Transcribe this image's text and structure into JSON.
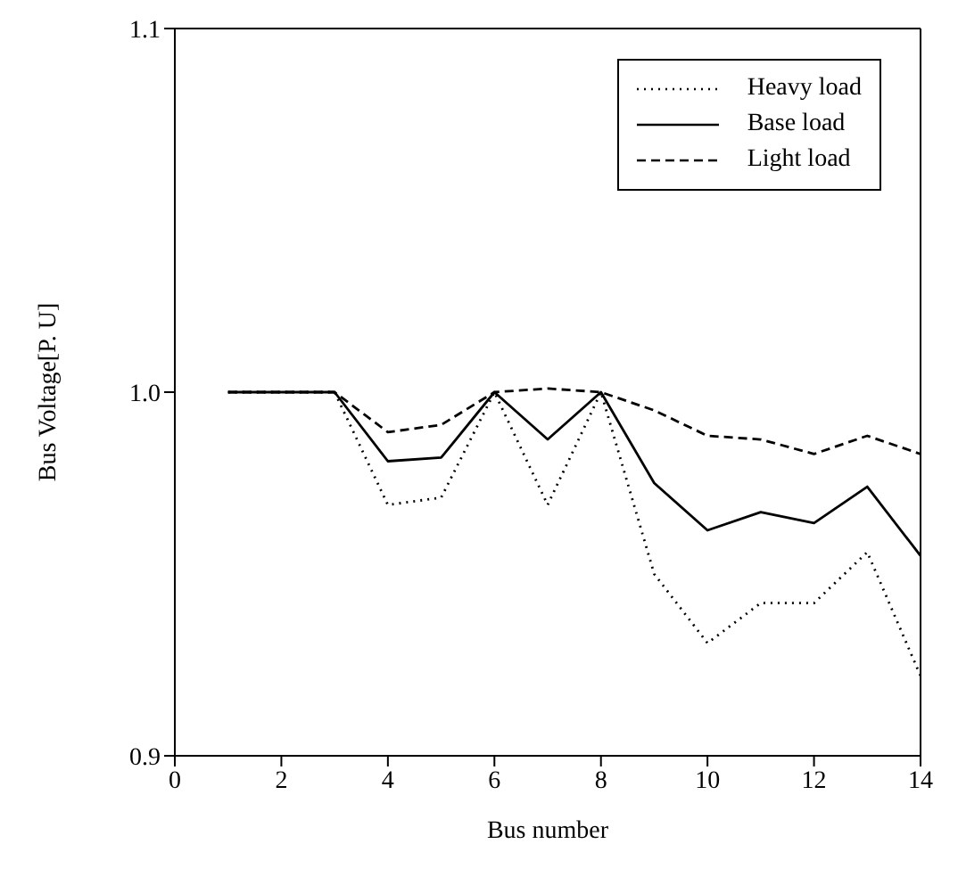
{
  "chart_data": {
    "type": "line",
    "xlabel": "Bus number",
    "ylabel": "Bus Voltage[P. U]",
    "x": [
      1,
      2,
      3,
      4,
      5,
      6,
      7,
      8,
      9,
      10,
      11,
      12,
      13,
      14
    ],
    "xlim": [
      0,
      14
    ],
    "xticks": [
      0,
      2,
      4,
      6,
      8,
      10,
      12,
      14
    ],
    "ylim": [
      0.9,
      1.1
    ],
    "yticks": [
      {
        "value": 0.9,
        "label": "0.9"
      },
      {
        "value": 1.0,
        "label": "1.0"
      },
      {
        "value": 1.1,
        "label": "1.1"
      }
    ],
    "grid": false,
    "legend": "top right",
    "marker": "none",
    "series": [
      {
        "name": "Heavy load",
        "color": "#000000",
        "line_style": "dotted",
        "values": [
          1.0,
          1.0,
          1.0,
          0.969,
          0.971,
          1.0,
          0.969,
          1.0,
          0.95,
          0.931,
          0.942,
          0.942,
          0.956,
          0.922
        ]
      },
      {
        "name": "Base load",
        "color": "#000000",
        "line_style": "solid",
        "values": [
          1.0,
          1.0,
          1.0,
          0.981,
          0.982,
          1.0,
          0.987,
          1.0,
          0.975,
          0.962,
          0.967,
          0.964,
          0.974,
          0.955
        ]
      },
      {
        "name": "Light load",
        "color": "#000000",
        "line_style": "dashed",
        "values": [
          1.0,
          1.0,
          1.0,
          0.989,
          0.991,
          1.0,
          1.001,
          1.0,
          0.995,
          0.988,
          0.987,
          0.983,
          0.988,
          0.983
        ]
      }
    ]
  }
}
